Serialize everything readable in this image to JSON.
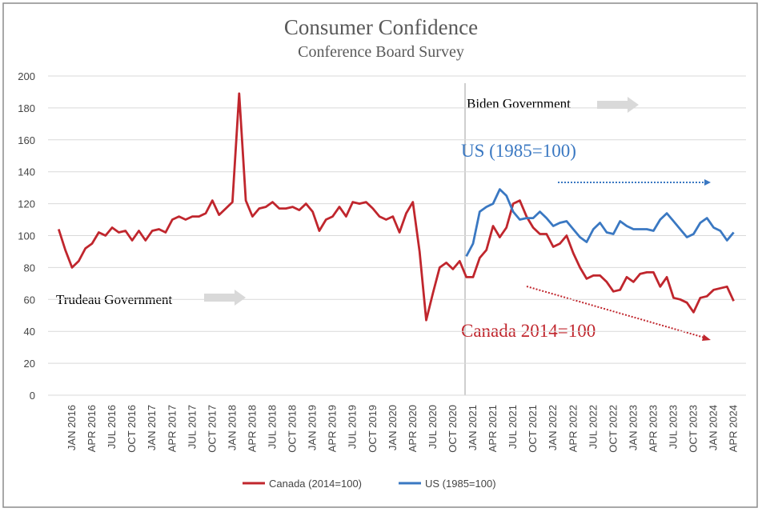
{
  "chart_data": {
    "type": "line",
    "title": "Consumer Confidence",
    "subtitle": "Conference Board Survey",
    "categories": [
      null,
      null,
      "JAN 2016",
      null,
      null,
      "APR 2016",
      null,
      null,
      "JUL 2016",
      null,
      null,
      "OCT 2016",
      null,
      null,
      "JAN 2017",
      null,
      null,
      "APR 2017",
      null,
      null,
      "JUL 2017",
      null,
      null,
      "OCT 2017",
      null,
      null,
      "JAN 2018",
      null,
      null,
      "APR 2018",
      null,
      null,
      "JUL 2018",
      null,
      null,
      "OCT 2018",
      null,
      null,
      "JAN 2019",
      null,
      null,
      "APR 2019",
      null,
      null,
      "JUL 2019",
      null,
      null,
      "OCT 2019",
      null,
      null,
      "JAN 2020",
      null,
      null,
      "APR 2020",
      null,
      null,
      "JUL 2020",
      null,
      null,
      "OCT 2020",
      null,
      null,
      "JAN 2021",
      null,
      null,
      "APR 2021",
      null,
      null,
      "JUL 2021",
      null,
      null,
      "OCT 2021",
      null,
      null,
      "JAN 2022",
      null,
      null,
      "APR 2022",
      null,
      null,
      "JUL 2022",
      null,
      null,
      "OCT 2022",
      null,
      null,
      "JAN 2023",
      null,
      null,
      "APR 2023",
      null,
      null,
      "JUL 2023",
      null,
      null,
      "OCT 2023",
      null,
      null,
      "JAN 2024",
      null,
      null,
      "APR 2024"
    ],
    "series": [
      {
        "name": "Canada (2014=100)",
        "color": "#c0262d",
        "values": [
          104,
          91,
          80,
          84,
          92,
          95,
          102,
          100,
          105,
          102,
          103,
          97,
          103,
          97,
          103,
          104,
          102,
          110,
          112,
          110,
          112,
          112,
          114,
          122,
          113,
          117,
          121,
          189,
          122,
          112,
          117,
          118,
          121,
          117,
          117,
          118,
          116,
          120,
          115,
          103,
          110,
          112,
          118,
          112,
          121,
          120,
          121,
          117,
          112,
          110,
          112,
          102,
          114,
          121,
          90,
          47,
          64,
          80,
          83,
          79,
          84,
          74,
          74,
          86,
          91,
          106,
          99,
          105,
          120,
          122,
          112,
          105,
          101,
          101,
          93,
          95,
          100,
          89,
          80,
          73,
          75,
          75,
          71,
          65,
          66,
          74,
          71,
          76,
          77,
          77,
          68,
          74,
          61,
          60,
          58,
          52,
          61,
          62,
          66,
          67,
          68,
          59
        ]
      },
      {
        "name": "US (1985=100)",
        "color": "#3a78c2",
        "values": [
          null,
          null,
          null,
          null,
          null,
          null,
          null,
          null,
          null,
          null,
          null,
          null,
          null,
          null,
          null,
          null,
          null,
          null,
          null,
          null,
          null,
          null,
          null,
          null,
          null,
          null,
          null,
          null,
          null,
          null,
          null,
          null,
          null,
          null,
          null,
          null,
          null,
          null,
          null,
          null,
          null,
          null,
          null,
          null,
          null,
          null,
          null,
          null,
          null,
          null,
          null,
          null,
          null,
          null,
          null,
          null,
          null,
          null,
          null,
          null,
          null,
          87,
          95,
          115,
          118,
          120,
          129,
          125,
          115,
          110,
          111,
          111,
          115,
          111,
          106,
          108,
          109,
          104,
          99,
          96,
          104,
          108,
          102,
          101,
          109,
          106,
          104,
          104,
          104,
          103,
          110,
          114,
          109,
          104,
          99,
          101,
          108,
          111,
          105,
          103,
          97,
          102
        ]
      }
    ],
    "ylim": [
      0,
      200
    ],
    "yticks": [
      0,
      20,
      40,
      60,
      80,
      100,
      120,
      140,
      160,
      180,
      200
    ],
    "grid": true,
    "legend": "bottom",
    "annotations": [
      "Biden Government",
      "US (1985=100)",
      "Trudeau Government",
      "Canada 2014=100"
    ]
  }
}
